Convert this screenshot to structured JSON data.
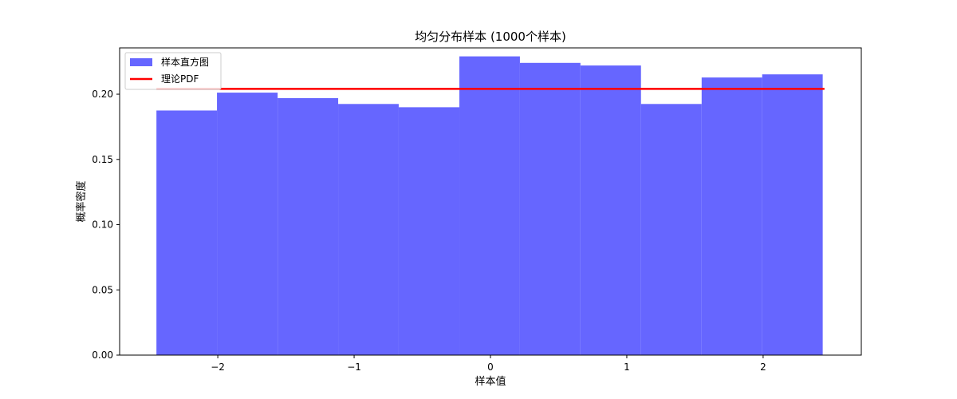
{
  "chart_data": {
    "type": "bar",
    "title": "均匀分布样本 (1000个样本)",
    "xlabel": "样本值",
    "ylabel": "概率密度",
    "xlim": [
      -2.72,
      2.72
    ],
    "ylim": [
      0,
      0.2355
    ],
    "xticks": [
      -2,
      -1,
      0,
      1,
      2
    ],
    "xtick_labels": [
      "−2",
      "−1",
      "0",
      "1",
      "2"
    ],
    "yticks": [
      0,
      0.05,
      0.1,
      0.15,
      0.2
    ],
    "ytick_labels": [
      "0.00",
      "0.05",
      "0.10",
      "0.15",
      "0.20"
    ],
    "grid": false,
    "legend_position": "top-left",
    "series": [
      {
        "name": "样本直方图",
        "kind": "histogram",
        "color": "#6666ff",
        "bin_edges": [
          -2.45,
          -2.006,
          -1.561,
          -1.117,
          -0.673,
          -0.228,
          0.216,
          0.66,
          1.104,
          1.549,
          1.993,
          2.437
        ],
        "values": [
          0.1875,
          0.2012,
          0.197,
          0.1925,
          0.19,
          0.229,
          0.224,
          0.222,
          0.1925,
          0.2128,
          0.2152
        ]
      },
      {
        "name": "理论PDF",
        "kind": "line",
        "color": "#ff0000",
        "x": [
          -2.45,
          2.45
        ],
        "y": [
          0.2041,
          0.2041
        ]
      }
    ]
  }
}
